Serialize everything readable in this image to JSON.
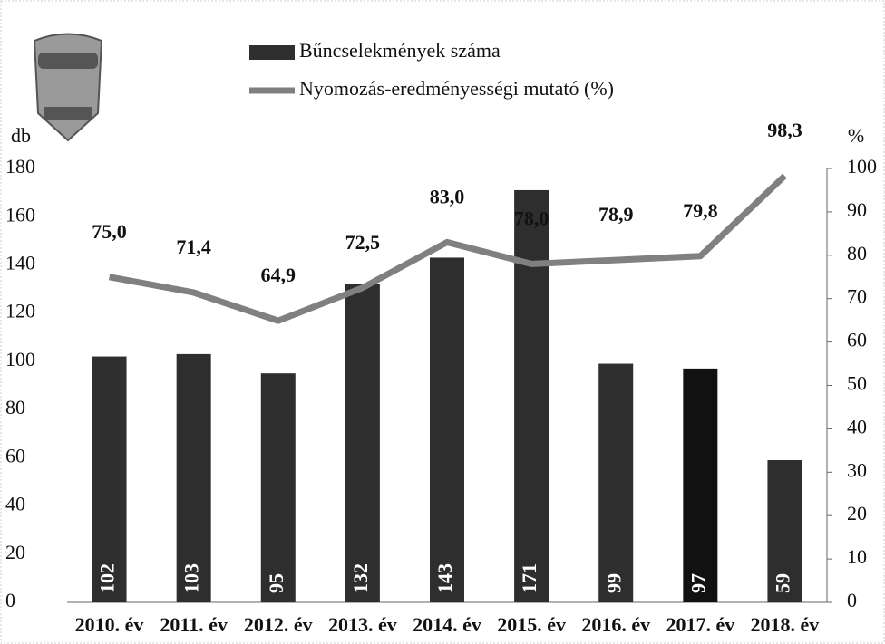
{
  "chart_data": {
    "type": "bar_line",
    "categories": [
      "2010. év",
      "2011. év",
      "2012. év",
      "2013. év",
      "2014. év",
      "2015. év",
      "2016. év",
      "2017. év",
      "2018. év"
    ],
    "y_label": "db",
    "y2_label": "%",
    "series": [
      {
        "name": "Bűncselekmények száma",
        "type": "bar",
        "color": "#2e2e2e",
        "colors": [
          "#2e2e2e",
          "#2e2e2e",
          "#2e2e2e",
          "#2e2e2e",
          "#2e2e2e",
          "#2e2e2e",
          "#2e2e2e",
          "#111111",
          "#2e2e2e"
        ],
        "values": [
          102,
          103,
          95,
          132,
          143,
          171,
          99,
          97,
          59
        ]
      },
      {
        "name": "Nyomozás-eredményességi mutató (%)",
        "type": "line",
        "axis": "y2",
        "color": "#808080",
        "values": [
          75.0,
          71.4,
          64.9,
          72.5,
          83.0,
          78.0,
          78.9,
          79.8,
          98.3
        ],
        "value_labels": [
          "75,0",
          "71,4",
          "64,9",
          "72,5",
          "83,0",
          "78,0",
          "78,9",
          "79,8",
          "98,3"
        ]
      }
    ],
    "ylim": [
      0,
      180
    ],
    "yticks": [
      0,
      20,
      40,
      60,
      80,
      100,
      120,
      140,
      160,
      180
    ],
    "y2lim": [
      0,
      100
    ],
    "y2ticks": [
      0,
      10,
      20,
      30,
      40,
      50,
      60,
      70,
      80,
      90,
      100
    ],
    "grid": false
  }
}
